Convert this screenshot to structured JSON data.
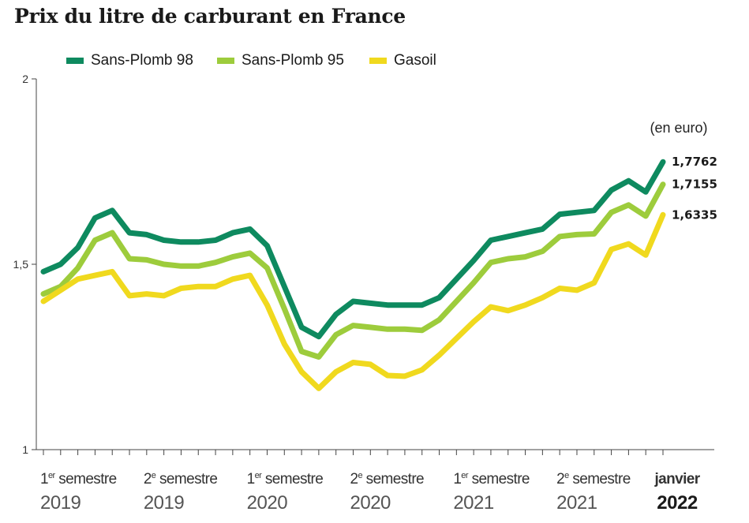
{
  "chart_data": {
    "type": "line",
    "title": "Prix du litre de carburant en France",
    "unit_label": "(en euro)",
    "ylim": [
      1,
      2
    ],
    "y_ticks": [
      "1",
      "1,5",
      "2"
    ],
    "y_tick_values": [
      1,
      1.5,
      2
    ],
    "x_labels": [
      {
        "sup": "er",
        "pre": "1",
        "post": " semestre",
        "year": "2019",
        "bold": false
      },
      {
        "sup": "e",
        "pre": "2",
        "post": " semestre",
        "year": "2019",
        "bold": false
      },
      {
        "sup": "er",
        "pre": "1",
        "post": " semestre",
        "year": "2020",
        "bold": false
      },
      {
        "sup": "e",
        "pre": "2",
        "post": " semestre",
        "year": "2020",
        "bold": false
      },
      {
        "sup": "er",
        "pre": "1",
        "post": " semestre",
        "year": "2021",
        "bold": false
      },
      {
        "sup": "e",
        "pre": "2",
        "post": " semestre",
        "year": "2021",
        "bold": false
      },
      {
        "sup": "",
        "pre": "janvier",
        "post": "",
        "year": "2022",
        "bold": true
      }
    ],
    "x_label_indices": [
      0,
      6,
      12,
      18,
      24,
      30,
      36
    ],
    "series": [
      {
        "name": "Sans-Plomb 98",
        "color": "#0e8a5f",
        "end_label": "1,7762",
        "values": [
          1.48,
          1.5,
          1.545,
          1.625,
          1.645,
          1.585,
          1.58,
          1.565,
          1.56,
          1.56,
          1.565,
          1.585,
          1.595,
          1.55,
          1.44,
          1.33,
          1.305,
          1.365,
          1.4,
          1.395,
          1.39,
          1.39,
          1.39,
          1.41,
          1.46,
          1.51,
          1.565,
          1.575,
          1.585,
          1.595,
          1.635,
          1.64,
          1.645,
          1.7,
          1.725,
          1.695,
          1.7762
        ]
      },
      {
        "name": "Sans-Plomb 95",
        "color": "#9dcc3c",
        "end_label": "1,7155",
        "values": [
          1.42,
          1.44,
          1.49,
          1.565,
          1.585,
          1.515,
          1.512,
          1.5,
          1.495,
          1.495,
          1.505,
          1.52,
          1.53,
          1.49,
          1.38,
          1.265,
          1.25,
          1.31,
          1.335,
          1.33,
          1.325,
          1.325,
          1.322,
          1.35,
          1.4,
          1.45,
          1.505,
          1.515,
          1.52,
          1.535,
          1.575,
          1.58,
          1.582,
          1.64,
          1.66,
          1.63,
          1.7155
        ]
      },
      {
        "name": "Gasoil",
        "color": "#f0d91e",
        "end_label": "1,6335",
        "values": [
          1.4,
          1.43,
          1.46,
          1.47,
          1.48,
          1.415,
          1.42,
          1.415,
          1.435,
          1.44,
          1.44,
          1.46,
          1.47,
          1.39,
          1.285,
          1.21,
          1.165,
          1.21,
          1.235,
          1.23,
          1.2,
          1.198,
          1.215,
          1.255,
          1.3,
          1.345,
          1.385,
          1.375,
          1.39,
          1.41,
          1.435,
          1.43,
          1.45,
          1.54,
          1.555,
          1.525,
          1.6335
        ]
      }
    ]
  }
}
